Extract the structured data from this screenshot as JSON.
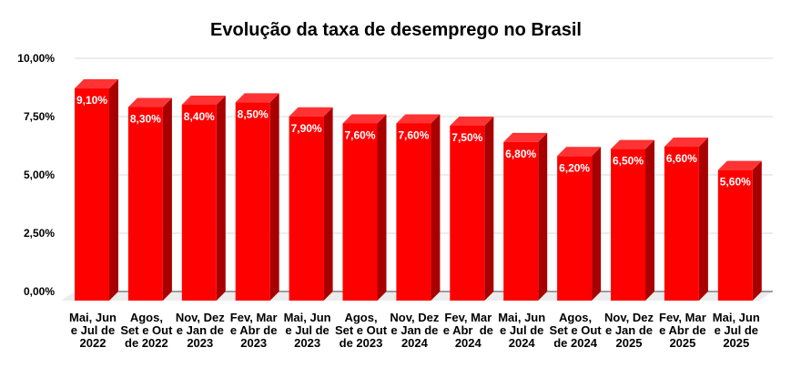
{
  "chart_data": {
    "type": "bar",
    "title": "Evolução da taxa de desemprego no Brasil",
    "xlabel": "",
    "ylabel": "",
    "ylim": [
      0,
      10
    ],
    "yticks": [
      "0,00%",
      "2,50%",
      "5,00%",
      "7,50%",
      "10,00%"
    ],
    "ytick_values": [
      0,
      2.5,
      5,
      7.5,
      10
    ],
    "grid": true,
    "legend": "none",
    "categories": [
      "Mai, Jun\ne Jul de\n2022",
      "Agos,\nSet e Out\nde 2022",
      "Nov, Dez\ne Jan de\n2023",
      "Fev, Mar\ne Abr de\n2023",
      "Mai, Jun\ne Jul de\n2023",
      "Agos,\nSet e Out\nde 2023",
      "Nov, Dez\ne Jan de\n2024",
      "Fev, Mar\ne Abr  de\n2024",
      "Mai, Jun\ne Jul de\n2024",
      "Agos,\nSet e Out\nde 2024",
      "Nov, Dez\ne Jan de\n2025",
      "Fev, Mar\ne Abr de\n2025",
      "Mai, Jun\ne Jul de\n2025"
    ],
    "values": [
      9.1,
      8.3,
      8.4,
      8.5,
      7.9,
      7.6,
      7.6,
      7.5,
      6.8,
      6.2,
      6.5,
      6.6,
      5.6
    ],
    "data_labels": [
      "9,10%",
      "8,30%",
      "8,40%",
      "8,50%",
      "7,90%",
      "7,60%",
      "7,60%",
      "7,50%",
      "6,80%",
      "6,20%",
      "6,50%",
      "6,60%",
      "5,60%"
    ],
    "colors": {
      "front": "#ff0000",
      "side": "#a80000",
      "top": "#ff3333",
      "grid": "#d9d9d9",
      "floor": "#ececec"
    }
  }
}
